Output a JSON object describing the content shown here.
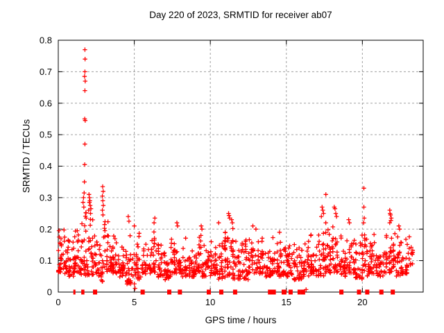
{
  "colors": {
    "background": "#ffffff",
    "axis": "#000000",
    "grid": "#a0a0a0",
    "marker": "#ff0000",
    "text": "#000000"
  },
  "chart_data": {
    "type": "scatter",
    "title": "Day 220 of 2023, SRMTID for receiver ab07",
    "xlabel": "GPS time / hours",
    "ylabel": "SRMTID / TECUs",
    "xlim": [
      0,
      24
    ],
    "ylim": [
      0,
      0.8
    ],
    "xtick_values": [
      0,
      5,
      10,
      15,
      20
    ],
    "xtick_labels": [
      "0",
      "5",
      "10",
      "15",
      "20"
    ],
    "ytick_values": [
      0,
      0.1,
      0.2,
      0.3,
      0.4,
      0.5,
      0.6,
      0.7,
      0.8
    ],
    "ytick_labels": [
      "0",
      "0.1",
      "0.2",
      "0.3",
      "0.4",
      "0.5",
      "0.6",
      "0.7",
      "0.8"
    ],
    "grid": true,
    "legend": false,
    "marker": {
      "shape": "plus",
      "size": 7,
      "color": "#ff0000"
    },
    "outliers": [
      [
        1.75,
        0.77
      ],
      [
        1.76,
        0.74
      ],
      [
        1.75,
        0.7
      ],
      [
        1.73,
        0.685
      ],
      [
        1.77,
        0.67
      ],
      [
        1.75,
        0.64
      ],
      [
        1.74,
        0.55
      ],
      [
        1.77,
        0.545
      ],
      [
        1.75,
        0.47
      ],
      [
        1.74,
        0.405
      ],
      [
        1.72,
        0.35
      ],
      [
        1.7,
        0.315
      ],
      [
        1.66,
        0.3
      ],
      [
        1.63,
        0.285
      ],
      [
        1.68,
        0.27
      ],
      [
        2.02,
        0.31
      ],
      [
        2.05,
        0.3
      ],
      [
        2.08,
        0.29
      ],
      [
        2.05,
        0.285
      ],
      [
        2.1,
        0.275
      ],
      [
        2.15,
        0.265
      ],
      [
        2.0,
        0.26
      ],
      [
        2.12,
        0.25
      ],
      [
        2.92,
        0.335
      ],
      [
        2.95,
        0.32
      ],
      [
        2.9,
        0.305
      ],
      [
        2.93,
        0.29
      ],
      [
        2.96,
        0.275
      ],
      [
        2.9,
        0.26
      ],
      [
        2.94,
        0.245
      ],
      [
        0.05,
        0.195
      ],
      [
        0.07,
        0.175
      ],
      [
        4.6,
        0.24
      ],
      [
        4.65,
        0.225
      ],
      [
        5.0,
        0.21
      ],
      [
        5.05,
        0.012
      ],
      [
        6.35,
        0.235
      ],
      [
        6.3,
        0.22
      ],
      [
        7.8,
        0.22
      ],
      [
        7.85,
        0.21
      ],
      [
        9.4,
        0.21
      ],
      [
        9.45,
        0.2
      ],
      [
        10.55,
        0.22
      ],
      [
        11.2,
        0.25
      ],
      [
        11.23,
        0.243
      ],
      [
        11.27,
        0.235
      ],
      [
        11.4,
        0.23
      ],
      [
        11.45,
        0.22
      ],
      [
        12.8,
        0.21
      ],
      [
        13.0,
        0.2
      ],
      [
        14.55,
        0.19
      ],
      [
        16.3,
        0.008
      ],
      [
        17.6,
        0.31
      ],
      [
        17.35,
        0.27
      ],
      [
        17.4,
        0.26
      ],
      [
        17.45,
        0.25
      ],
      [
        17.3,
        0.24
      ],
      [
        18.15,
        0.27
      ],
      [
        18.2,
        0.265
      ],
      [
        18.25,
        0.25
      ],
      [
        18.3,
        0.24
      ],
      [
        19.1,
        0.23
      ],
      [
        19.15,
        0.22
      ],
      [
        20.1,
        0.33
      ],
      [
        20.1,
        0.27
      ],
      [
        20.12,
        0.235
      ],
      [
        20.08,
        0.22
      ],
      [
        21.8,
        0.26
      ],
      [
        21.82,
        0.25
      ],
      [
        21.85,
        0.245
      ],
      [
        21.9,
        0.235
      ],
      [
        21.8,
        0.22
      ],
      [
        22.4,
        0.21
      ],
      [
        22.45,
        0.2
      ]
    ],
    "zero_runs": [
      [
        1.06,
        1
      ],
      [
        1.58,
        1
      ],
      [
        1.65,
        1
      ],
      [
        2.42,
        4
      ],
      [
        5.55,
        4
      ],
      [
        7.3,
        4
      ],
      [
        8.0,
        4
      ],
      [
        9.9,
        4
      ],
      [
        10.72,
        4
      ],
      [
        11.63,
        4
      ],
      [
        13.95,
        5
      ],
      [
        14.15,
        5
      ],
      [
        14.85,
        5
      ],
      [
        15.28,
        4
      ],
      [
        15.85,
        3
      ],
      [
        16.1,
        4
      ],
      [
        18.62,
        4
      ],
      [
        19.78,
        4
      ],
      [
        20.32,
        4
      ],
      [
        21.25,
        4
      ],
      [
        22.0,
        4
      ]
    ],
    "band_segments": [
      [
        0.0,
        0.5,
        34,
        0.05,
        0.2
      ],
      [
        0.5,
        1.0,
        32,
        0.04,
        0.19
      ],
      [
        1.0,
        1.5,
        34,
        0.05,
        0.21
      ],
      [
        1.5,
        2.0,
        34,
        0.04,
        0.26
      ],
      [
        2.0,
        2.5,
        34,
        0.04,
        0.27
      ],
      [
        2.5,
        3.0,
        30,
        0.02,
        0.24
      ],
      [
        3.0,
        3.5,
        32,
        0.05,
        0.24
      ],
      [
        3.5,
        4.0,
        30,
        0.05,
        0.18
      ],
      [
        4.0,
        4.5,
        30,
        0.04,
        0.17
      ],
      [
        4.5,
        5.0,
        30,
        0.01,
        0.21
      ],
      [
        5.0,
        5.5,
        28,
        0.03,
        0.19
      ],
      [
        5.5,
        6.0,
        26,
        0.05,
        0.17
      ],
      [
        6.0,
        6.5,
        30,
        0.05,
        0.21
      ],
      [
        6.5,
        7.0,
        28,
        0.04,
        0.16
      ],
      [
        7.0,
        7.5,
        30,
        0.03,
        0.17
      ],
      [
        7.5,
        8.0,
        32,
        0.05,
        0.2
      ],
      [
        8.0,
        8.5,
        30,
        0.04,
        0.18
      ],
      [
        8.5,
        9.0,
        28,
        0.04,
        0.16
      ],
      [
        9.0,
        9.5,
        30,
        0.05,
        0.19
      ],
      [
        9.5,
        10.0,
        28,
        0.04,
        0.18
      ],
      [
        10.0,
        10.5,
        30,
        0.05,
        0.17
      ],
      [
        10.5,
        11.0,
        32,
        0.03,
        0.2
      ],
      [
        11.0,
        11.5,
        34,
        0.04,
        0.22
      ],
      [
        11.5,
        12.0,
        30,
        0.03,
        0.2
      ],
      [
        12.0,
        12.5,
        28,
        0.03,
        0.17
      ],
      [
        12.5,
        13.0,
        30,
        0.05,
        0.19
      ],
      [
        13.0,
        13.5,
        28,
        0.05,
        0.18
      ],
      [
        13.5,
        14.0,
        26,
        0.04,
        0.16
      ],
      [
        14.0,
        14.5,
        30,
        0.05,
        0.18
      ],
      [
        14.5,
        15.0,
        28,
        0.04,
        0.18
      ],
      [
        15.0,
        15.5,
        28,
        0.04,
        0.16
      ],
      [
        15.5,
        16.0,
        30,
        0.03,
        0.18
      ],
      [
        16.0,
        16.5,
        28,
        0.04,
        0.17
      ],
      [
        16.5,
        17.0,
        30,
        0.05,
        0.19
      ],
      [
        17.0,
        17.5,
        30,
        0.04,
        0.21
      ],
      [
        17.5,
        18.0,
        30,
        0.05,
        0.22
      ],
      [
        18.0,
        18.5,
        30,
        0.05,
        0.23
      ],
      [
        18.5,
        19.0,
        28,
        0.04,
        0.19
      ],
      [
        19.0,
        19.5,
        30,
        0.05,
        0.21
      ],
      [
        19.5,
        20.0,
        28,
        0.03,
        0.2
      ],
      [
        20.0,
        20.5,
        30,
        0.04,
        0.2
      ],
      [
        20.5,
        21.0,
        28,
        0.05,
        0.19
      ],
      [
        21.0,
        21.5,
        30,
        0.04,
        0.21
      ],
      [
        21.5,
        22.0,
        30,
        0.05,
        0.23
      ],
      [
        22.0,
        22.5,
        30,
        0.04,
        0.2
      ],
      [
        22.5,
        23.0,
        28,
        0.05,
        0.18
      ],
      [
        23.0,
        23.35,
        12,
        0.08,
        0.18
      ]
    ],
    "seed": 220
  }
}
